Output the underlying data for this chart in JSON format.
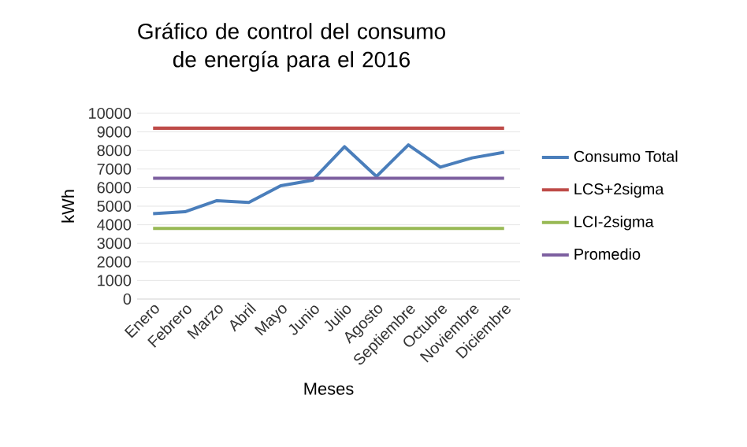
{
  "chart_data": {
    "type": "line",
    "title": "Gráfico de control del consumo de energía para el 2016",
    "xlabel": "Meses",
    "ylabel": "kWh",
    "categories": [
      "Enero",
      "Febrero",
      "Marzo",
      "Abril",
      "Mayo",
      "Junio",
      "Julio",
      "Agosto",
      "Septiembre",
      "Octubre",
      "Noviembre",
      "Diciembre"
    ],
    "series": [
      {
        "name": "Consumo Total",
        "color": "#4a7ebb",
        "values": [
          4600,
          4700,
          5300,
          5200,
          6100,
          6400,
          8200,
          6600,
          8300,
          7100,
          7600,
          7900
        ]
      },
      {
        "name": "LCS+2sigma",
        "color": "#be4b48",
        "values": [
          9200,
          9200,
          9200,
          9200,
          9200,
          9200,
          9200,
          9200,
          9200,
          9200,
          9200,
          9200
        ]
      },
      {
        "name": "LCI-2sigma",
        "color": "#98b954",
        "values": [
          3800,
          3800,
          3800,
          3800,
          3800,
          3800,
          3800,
          3800,
          3800,
          3800,
          3800,
          3800
        ]
      },
      {
        "name": "Promedio",
        "color": "#7d60a0",
        "values": [
          6500,
          6500,
          6500,
          6500,
          6500,
          6500,
          6500,
          6500,
          6500,
          6500,
          6500,
          6500
        ]
      }
    ],
    "ylim": [
      0,
      10000
    ],
    "yticks": [
      0,
      1000,
      2000,
      3000,
      4000,
      5000,
      6000,
      7000,
      8000,
      9000,
      10000
    ],
    "grid": "y",
    "legend": "right",
    "marker": "none",
    "line_style": "solid"
  }
}
